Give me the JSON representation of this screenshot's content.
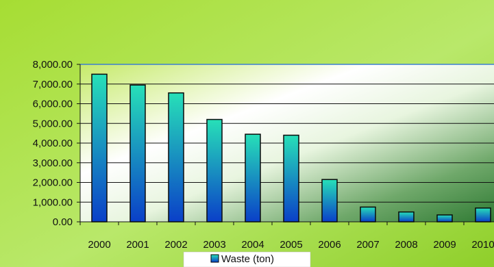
{
  "chart_data": {
    "type": "bar",
    "categories": [
      "2000",
      "2001",
      "2002",
      "2003",
      "2004",
      "2005",
      "2006",
      "2007",
      "2008",
      "2009",
      "2010"
    ],
    "series": [
      {
        "name": "Waste (ton)",
        "values": [
          7500,
          6950,
          6550,
          5200,
          4450,
          4400,
          2150,
          750,
          500,
          350,
          700
        ]
      }
    ],
    "y_ticks": [
      "0.00",
      "1,000.00",
      "2,000.00",
      "3,000.00",
      "4,000.00",
      "5,000.00",
      "6,000.00",
      "7,000.00",
      "8,000.00"
    ],
    "ylim": [
      0,
      8000
    ],
    "grid": true,
    "legend_position": "bottom",
    "title": "",
    "xlabel": "",
    "ylabel": ""
  },
  "colors": {
    "background": "#9fd92f",
    "bar_top": "#27e0b8",
    "bar_bottom": "#0a3fc8",
    "bar_outline": "#0a0a0a",
    "grid": "#111111"
  }
}
